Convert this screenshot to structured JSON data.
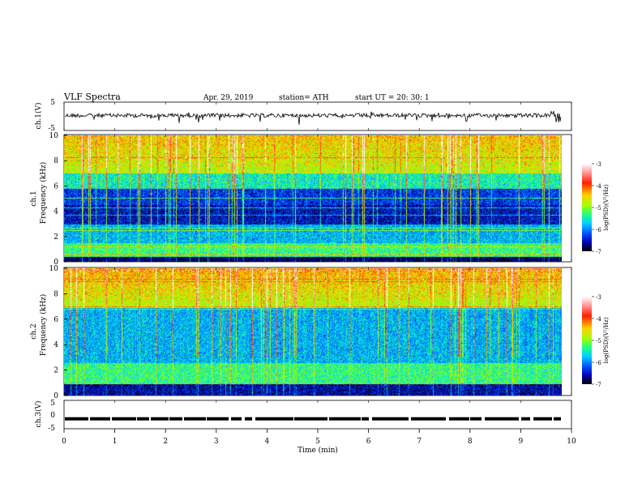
{
  "header": {
    "title": "VLF Spectra",
    "date": "Apr. 29, 2019",
    "station": "station= ATH",
    "start": "start UT =  20: 30: 1"
  },
  "chart_data": [
    {
      "id": "ch1",
      "type": "line",
      "ylabel": "ch.1(V)",
      "ylim": [
        -5,
        5
      ],
      "yticks": [
        "5",
        "-5"
      ],
      "baseline": 0.3,
      "note": "noisy waveform around ~0 V with sharp downward spikes"
    },
    {
      "id": "ch1_spec",
      "type": "heatmap",
      "ylabel": "ch.1",
      "ylabel2": "Frequency (kHz)",
      "ylim": [
        0,
        10
      ],
      "yticks": [
        "0",
        "2",
        "4",
        "6",
        "8",
        "10"
      ],
      "colorbar": {
        "label": "log(PSD)(V²/Hz)",
        "range": [
          -7,
          -3
        ],
        "ticks": [
          "-3",
          "-4",
          "-5",
          "-6",
          "-7"
        ]
      }
    },
    {
      "id": "ch2_spec",
      "type": "heatmap",
      "ylabel": "ch.2",
      "ylabel2": "Frequency (kHz)",
      "ylim": [
        0,
        10
      ],
      "yticks": [
        "0",
        "2",
        "4",
        "6",
        "8",
        "10"
      ],
      "colorbar": {
        "label": "log(PSD)(V²/Hz)",
        "range": [
          -7,
          -3
        ],
        "ticks": [
          "-3",
          "-4",
          "-5",
          "-6",
          "-7"
        ]
      }
    },
    {
      "id": "ch3",
      "type": "line",
      "ylabel": "ch.3(V)",
      "ylim": [
        -5,
        5
      ],
      "yticks": [
        "5",
        "0",
        "-5"
      ],
      "baseline": -1.5,
      "xlabel": "Time (min)",
      "xlim": [
        0,
        10
      ],
      "xticks": [
        "0",
        "1",
        "2",
        "3",
        "4",
        "5",
        "6",
        "7",
        "8",
        "9",
        "10"
      ]
    }
  ]
}
